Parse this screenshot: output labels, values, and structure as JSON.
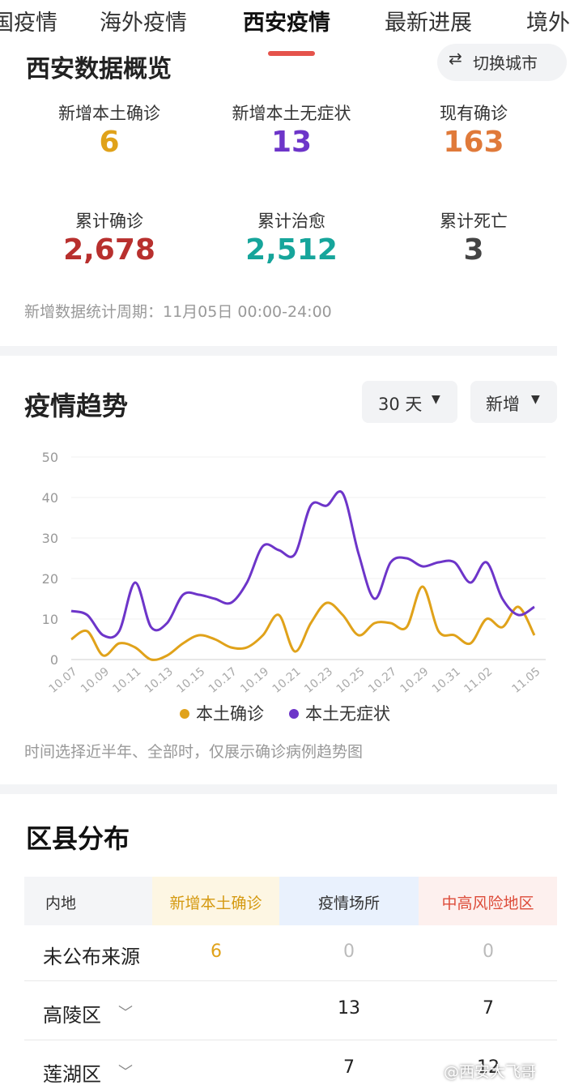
{
  "tabs": [
    {
      "label": "国疫情"
    },
    {
      "label": "海外疫情"
    },
    {
      "label": "西安疫情"
    },
    {
      "label": "最新进展"
    },
    {
      "label": "境外"
    }
  ],
  "overview": {
    "title": "西安数据概览",
    "switch_label": "切换城市",
    "stats": [
      {
        "label": "新增本土确诊",
        "value": "6",
        "color": "#e0a21a"
      },
      {
        "label": "新增本土无症状",
        "value": "13",
        "color": "#6d35c9"
      },
      {
        "label": "现有确诊",
        "value": "163",
        "color": "#e07a3a"
      },
      {
        "label": "累计确诊",
        "value": "2,678",
        "color": "#b8302e"
      },
      {
        "label": "累计治愈",
        "value": "2,512",
        "color": "#16a59b"
      },
      {
        "label": "累计死亡",
        "value": "3",
        "color": "#444444"
      }
    ],
    "period": "新增数据统计周期：11月05日 00:00-24:00"
  },
  "trend": {
    "title": "疫情趋势",
    "range_select": "30 天",
    "type_select": "新增",
    "note": "时间选择近半年、全部时，仅展示确诊病例趋势图"
  },
  "chart_data": {
    "type": "line",
    "ylim": [
      0,
      50
    ],
    "yticks": [
      "0",
      "10",
      "20",
      "30",
      "40",
      "50"
    ],
    "xticks": [
      "10.07",
      "10.09",
      "10.11",
      "10.13",
      "10.15",
      "10.17",
      "10.19",
      "10.21",
      "10.23",
      "10.25",
      "10.27",
      "10.29",
      "10.31",
      "11.02",
      "11.05"
    ],
    "x": [
      "10.07",
      "10.08",
      "10.09",
      "10.10",
      "10.11",
      "10.12",
      "10.13",
      "10.14",
      "10.15",
      "10.16",
      "10.17",
      "10.18",
      "10.19",
      "10.20",
      "10.21",
      "10.22",
      "10.23",
      "10.24",
      "10.25",
      "10.26",
      "10.27",
      "10.28",
      "10.29",
      "10.30",
      "10.31",
      "11.01",
      "11.02",
      "11.03",
      "11.04",
      "11.05"
    ],
    "series": [
      {
        "name": "本土确诊",
        "color": "#e0a21a",
        "values": [
          5,
          7,
          1,
          4,
          3,
          0,
          1,
          4,
          6,
          5,
          3,
          3,
          6,
          11,
          2,
          9,
          14,
          11,
          6,
          9,
          9,
          8,
          18,
          7,
          6,
          4,
          10,
          8,
          13,
          6
        ]
      },
      {
        "name": "本土无症状",
        "color": "#6d35c9",
        "values": [
          12,
          11,
          6,
          7,
          19,
          8,
          9,
          16,
          16,
          15,
          14,
          19,
          28,
          27,
          26,
          38,
          38,
          41,
          26,
          15,
          24,
          25,
          23,
          24,
          24,
          19,
          24,
          15,
          11,
          13
        ]
      }
    ]
  },
  "districts": {
    "title": "区县分布",
    "headers": [
      "内地",
      "新增本土确诊",
      "疫情场所",
      "中高风险地区"
    ],
    "rows": [
      {
        "name": "未公布来源",
        "new": "6",
        "places": "0",
        "risk": "0"
      },
      {
        "name": "高陵区",
        "new": "",
        "places": "13",
        "risk": "7"
      },
      {
        "name": "莲湖区",
        "new": "",
        "places": "7",
        "risk": "12"
      }
    ]
  },
  "watermark": "@西安大飞哥"
}
